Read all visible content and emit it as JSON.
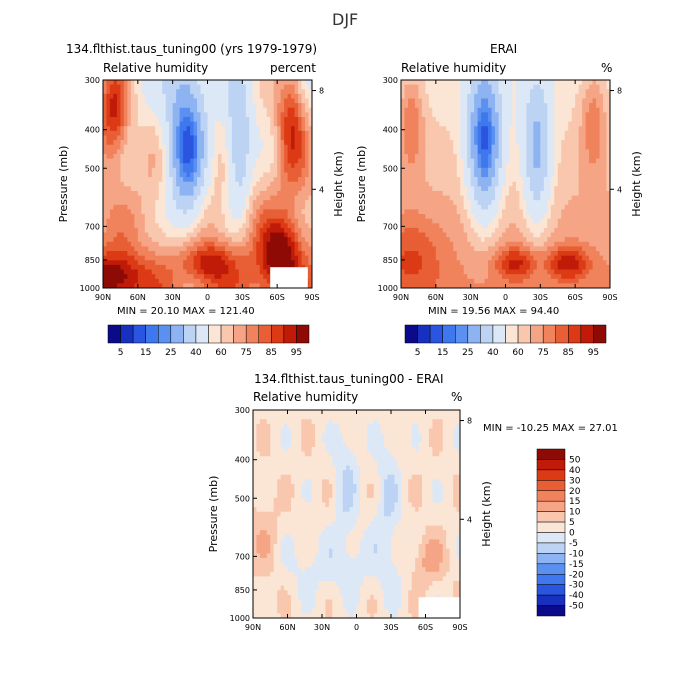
{
  "page": {
    "title": "DJF"
  },
  "panels": [
    {
      "id": "model",
      "title": "134.flthist.taus_tuning00 (yrs 1979-1979)",
      "subtitle_left": "Relative humidity",
      "subtitle_right": "percent",
      "stats": "MIN =  20.10   MAX = 121.40"
    },
    {
      "id": "obs",
      "title": "ERAI",
      "subtitle_left": "Relative humidity",
      "subtitle_right": "%",
      "stats": "MIN =  19.56   MAX =  94.40"
    },
    {
      "id": "diff",
      "title": "134.flthist.taus_tuning00 - ERAI",
      "subtitle_left": "Relative humidity",
      "subtitle_right": "%",
      "stats": "MIN = -10.25   MAX =  27.01"
    }
  ],
  "colorbars": {
    "top": {
      "colors": [
        "#0a0a8a",
        "#1730c0",
        "#2a55e0",
        "#3f78ee",
        "#5a90f0",
        "#8eb3f2",
        "#bcd3f4",
        "#dde8f7",
        "#fbe6d6",
        "#f9c7ad",
        "#f5a585",
        "#f0825c",
        "#e85e35",
        "#dc3a15",
        "#c01b08",
        "#8e0a05"
      ],
      "labels": [
        "5",
        "15",
        "25",
        "40",
        "60",
        "75",
        "85",
        "95"
      ]
    },
    "diff": {
      "colors": [
        "#8e0a05",
        "#c01b08",
        "#dc3a15",
        "#e85e35",
        "#f0825c",
        "#f5a585",
        "#f9c7ad",
        "#fbe6d6",
        "#dde8f7",
        "#bcd3f4",
        "#8eb3f2",
        "#5a90f0",
        "#3f78ee",
        "#2a55e0",
        "#1730c0",
        "#0a0a8a"
      ],
      "labels": [
        "50",
        "40",
        "30",
        "20",
        "15",
        "10",
        "5",
        "0",
        "-5",
        "-10",
        "-15",
        "-20",
        "-30",
        "-40",
        "-50"
      ]
    }
  },
  "chart_data": [
    {
      "type": "heatmap",
      "variable": "Relative humidity",
      "units": "percent",
      "xlabel": "",
      "ylabel": "Pressure (mb)",
      "y2label": "Height (km)",
      "x_ticks": [
        "90N",
        "60N",
        "30N",
        "0",
        "30S",
        "60S",
        "90S"
      ],
      "y_ticks": [
        "300",
        "400",
        "500",
        "700",
        "850",
        "1000"
      ],
      "y2_ticks": [
        "8",
        "4"
      ],
      "y_scale": "log",
      "min": 20.1,
      "max": 121.4
    },
    {
      "type": "heatmap",
      "variable": "Relative humidity",
      "units": "%",
      "xlabel": "",
      "ylabel": "Pressure (mb)",
      "y2label": "Height (km)",
      "x_ticks": [
        "90N",
        "60N",
        "30N",
        "0",
        "30S",
        "60S",
        "90S"
      ],
      "y_ticks": [
        "300",
        "400",
        "500",
        "700",
        "850",
        "1000"
      ],
      "y2_ticks": [
        "8",
        "4"
      ],
      "y_scale": "log",
      "min": 19.56,
      "max": 94.4
    },
    {
      "type": "heatmap",
      "variable": "Relative humidity",
      "units": "%",
      "xlabel": "",
      "ylabel": "Pressure (mb)",
      "y2label": "Height (km)",
      "x_ticks": [
        "90N",
        "60N",
        "30N",
        "0",
        "30S",
        "60S",
        "90S"
      ],
      "y_ticks": [
        "300",
        "400",
        "500",
        "700",
        "850",
        "1000"
      ],
      "y2_ticks": [
        "8",
        "4"
      ],
      "y_scale": "log",
      "min": -10.25,
      "max": 27.01
    }
  ]
}
